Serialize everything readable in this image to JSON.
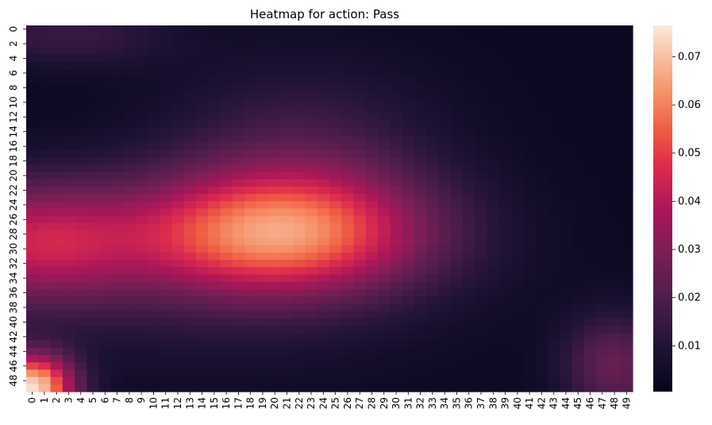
{
  "chart_data": {
    "type": "heatmap",
    "title": "Heatmap for action: Pass",
    "xlabel": "",
    "ylabel": "",
    "rows": 50,
    "cols": 50,
    "x_tick_labels": [
      "0",
      "1",
      "2",
      "3",
      "4",
      "5",
      "6",
      "7",
      "8",
      "9",
      "10",
      "11",
      "12",
      "13",
      "14",
      "15",
      "16",
      "17",
      "18",
      "19",
      "20",
      "21",
      "22",
      "23",
      "24",
      "25",
      "26",
      "27",
      "28",
      "29",
      "30",
      "31",
      "32",
      "33",
      "34",
      "35",
      "36",
      "37",
      "38",
      "39",
      "40",
      "41",
      "42",
      "43",
      "44",
      "45",
      "46",
      "47",
      "48",
      "49"
    ],
    "y_tick_labels": [
      "0",
      "2",
      "4",
      "6",
      "8",
      "10",
      "12",
      "14",
      "16",
      "18",
      "20",
      "22",
      "24",
      "26",
      "28",
      "30",
      "32",
      "34",
      "36",
      "38",
      "40",
      "42",
      "44",
      "46",
      "48"
    ],
    "colormap": "rocket",
    "colorbar": {
      "vmin": 0.0005,
      "vmax": 0.0765,
      "tick_values": [
        0.01,
        0.02,
        0.03,
        0.04,
        0.05,
        0.06,
        0.07
      ],
      "tick_labels": [
        "0.01",
        "0.02",
        "0.03",
        "0.04",
        "0.05",
        "0.06",
        "0.07"
      ]
    },
    "value_components": {
      "baseline": 0.003,
      "hot_spots": [
        {
          "row": 28,
          "col": 20,
          "sr": 6,
          "sc": 9,
          "amp": 0.053
        },
        {
          "row": 49,
          "col": 0,
          "sr": 3.2,
          "sc": 2.4,
          "amp": 0.07
        },
        {
          "row": 29,
          "col": 0,
          "sr": 6,
          "sc": 6,
          "amp": 0.035
        },
        {
          "row": 18,
          "col": 22,
          "sr": 9,
          "sc": 8,
          "amp": 0.015
        },
        {
          "row": 46,
          "col": 48,
          "sr": 5,
          "sc": 3,
          "amp": 0.022
        },
        {
          "row": 1,
          "col": 3,
          "sr": 3,
          "sc": 6,
          "amp": 0.012
        },
        {
          "row": 38,
          "col": 14,
          "sr": 8,
          "sc": 14,
          "amp": 0.006
        }
      ]
    }
  }
}
